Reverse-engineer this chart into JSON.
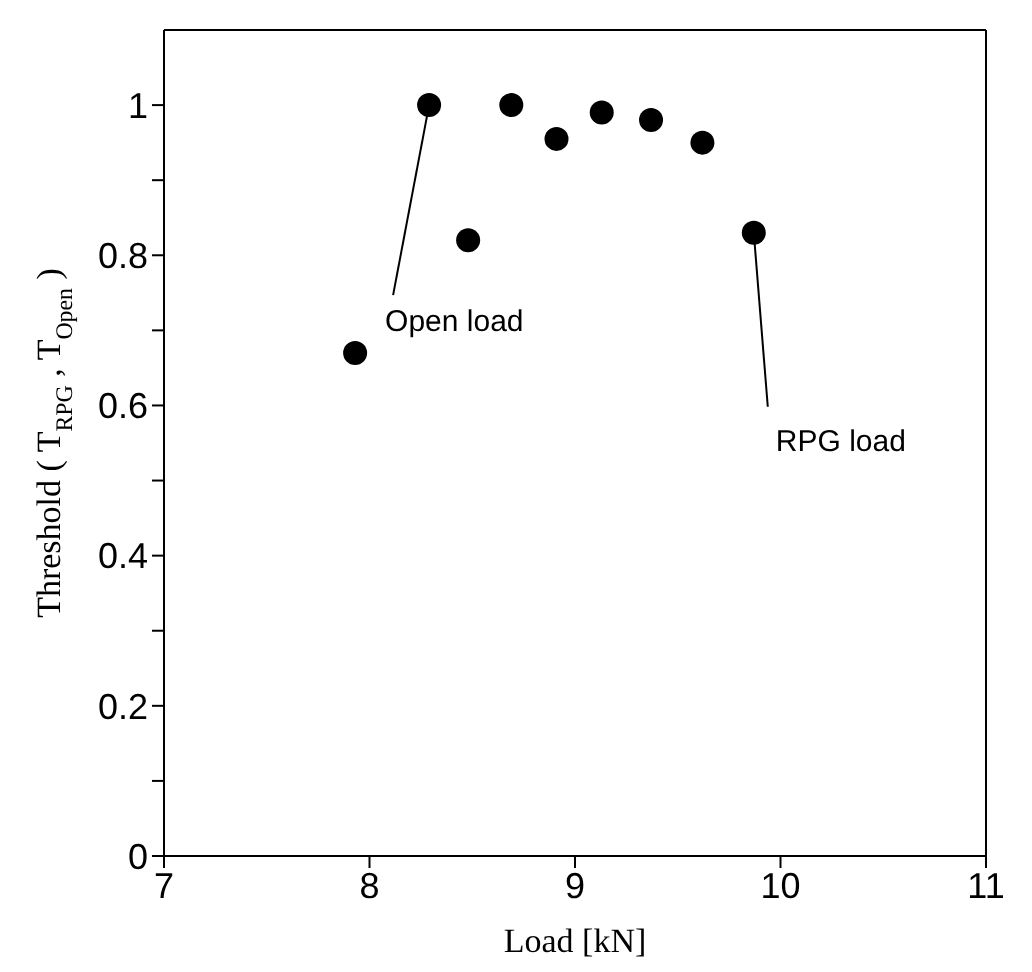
{
  "chart_data": {
    "type": "scatter",
    "xlabel": "Load [kN]",
    "ylabel": "Threshold ( T$_{RPG}$ , T$_{Open}$ )",
    "x": [
      7.93,
      8.29,
      8.48,
      8.69,
      8.91,
      9.13,
      9.37,
      9.62,
      9.87
    ],
    "series": [
      {
        "color": "#000000",
        "values": [
          0.67,
          1.0,
          0.82,
          1.0,
          0.955,
          0.99,
          0.98,
          0.95,
          0.83
        ]
      }
    ],
    "xlim": [
      7,
      11
    ],
    "xticks": [
      7,
      8,
      9,
      10,
      11
    ],
    "ylim": [
      0,
      1.1
    ],
    "yticks": [
      0,
      {
        "value": 0.1,
        "label": null
      },
      0.2,
      {
        "value": 0.3,
        "label": null
      },
      0.4,
      {
        "value": 0.5,
        "label": null
      },
      0.6,
      {
        "value": 0.7,
        "label": null
      },
      0.8,
      {
        "value": 0.9,
        "label": null
      },
      1
    ],
    "annotations": [
      {
        "text": "Open load",
        "x": 8.29,
        "y": 1.0
      },
      {
        "text": "RPG load",
        "x": 9.87,
        "y": 0.83
      }
    ],
    "marker": "circle",
    "legend": false
  }
}
